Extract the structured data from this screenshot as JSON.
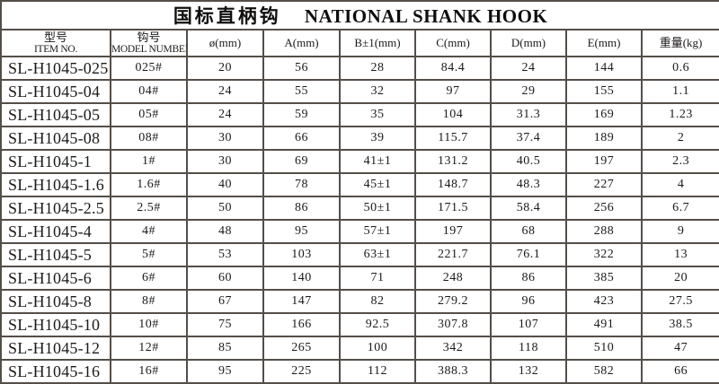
{
  "table": {
    "title": {
      "zh": "国标直柄钩",
      "en": "NATIONAL SHANK HOOK"
    },
    "columns": [
      {
        "line1": "型号",
        "line2": "ITEM NO."
      },
      {
        "line1": "钩号",
        "line2": "MODEL NUMBER"
      },
      {
        "line1": "ø(mm)"
      },
      {
        "line1": "A(mm)"
      },
      {
        "line1": "B±1(mm)"
      },
      {
        "line1": "C(mm)"
      },
      {
        "line1": "D(mm)"
      },
      {
        "line1": "E(mm)"
      },
      {
        "line1": "重量(kg)"
      }
    ],
    "rows": [
      [
        "SL-H1045-025",
        "025#",
        "20",
        "56",
        "28",
        "84.4",
        "24",
        "144",
        "0.6"
      ],
      [
        "SL-H1045-04",
        "04#",
        "24",
        "55",
        "32",
        "97",
        "29",
        "155",
        "1.1"
      ],
      [
        "SL-H1045-05",
        "05#",
        "24",
        "59",
        "35",
        "104",
        "31.3",
        "169",
        "1.23"
      ],
      [
        "SL-H1045-08",
        "08#",
        "30",
        "66",
        "39",
        "115.7",
        "37.4",
        "189",
        "2"
      ],
      [
        "SL-H1045-1",
        "1#",
        "30",
        "69",
        "41±1",
        "131.2",
        "40.5",
        "197",
        "2.3"
      ],
      [
        "SL-H1045-1.6",
        "1.6#",
        "40",
        "78",
        "45±1",
        "148.7",
        "48.3",
        "227",
        "4"
      ],
      [
        "SL-H1045-2.5",
        "2.5#",
        "50",
        "86",
        "50±1",
        "171.5",
        "58.4",
        "256",
        "6.7"
      ],
      [
        "SL-H1045-4",
        "4#",
        "48",
        "95",
        "57±1",
        "197",
        "68",
        "288",
        "9"
      ],
      [
        "SL-H1045-5",
        "5#",
        "53",
        "103",
        "63±1",
        "221.7",
        "76.1",
        "322",
        "13"
      ],
      [
        "SL-H1045-6",
        "6#",
        "60",
        "140",
        "71",
        "248",
        "86",
        "385",
        "20"
      ],
      [
        "SL-H1045-8",
        "8#",
        "67",
        "147",
        "82",
        "279.2",
        "96",
        "423",
        "27.5"
      ],
      [
        "SL-H1045-10",
        "10#",
        "75",
        "166",
        "92.5",
        "307.8",
        "107",
        "491",
        "38.5"
      ],
      [
        "SL-H1045-12",
        "12#",
        "85",
        "265",
        "100",
        "342",
        "118",
        "510",
        "47"
      ],
      [
        "SL-H1045-16",
        "16#",
        "95",
        "225",
        "112",
        "388.3",
        "132",
        "582",
        "66"
      ]
    ]
  },
  "chart_data": {
    "type": "table",
    "title": "国标直柄钩 NATIONAL SHANK HOOK",
    "columns": [
      "型号 ITEM NO.",
      "钩号 MODEL NUMBER",
      "ø(mm)",
      "A(mm)",
      "B±1(mm)",
      "C(mm)",
      "D(mm)",
      "E(mm)",
      "重量(kg)"
    ],
    "rows": [
      [
        "SL-H1045-025",
        "025#",
        "20",
        "56",
        "28",
        "84.4",
        "24",
        "144",
        "0.6"
      ],
      [
        "SL-H1045-04",
        "04#",
        "24",
        "55",
        "32",
        "97",
        "29",
        "155",
        "1.1"
      ],
      [
        "SL-H1045-05",
        "05#",
        "24",
        "59",
        "35",
        "104",
        "31.3",
        "169",
        "1.23"
      ],
      [
        "SL-H1045-08",
        "08#",
        "30",
        "66",
        "39",
        "115.7",
        "37.4",
        "189",
        "2"
      ],
      [
        "SL-H1045-1",
        "1#",
        "30",
        "69",
        "41±1",
        "131.2",
        "40.5",
        "197",
        "2.3"
      ],
      [
        "SL-H1045-1.6",
        "1.6#",
        "40",
        "78",
        "45±1",
        "148.7",
        "48.3",
        "227",
        "4"
      ],
      [
        "SL-H1045-2.5",
        "2.5#",
        "50",
        "86",
        "50±1",
        "171.5",
        "58.4",
        "256",
        "6.7"
      ],
      [
        "SL-H1045-4",
        "4#",
        "48",
        "95",
        "57±1",
        "197",
        "68",
        "288",
        "9"
      ],
      [
        "SL-H1045-5",
        "5#",
        "53",
        "103",
        "63±1",
        "221.7",
        "76.1",
        "322",
        "13"
      ],
      [
        "SL-H1045-6",
        "6#",
        "60",
        "140",
        "71",
        "248",
        "86",
        "385",
        "20"
      ],
      [
        "SL-H1045-8",
        "8#",
        "67",
        "147",
        "82",
        "279.2",
        "96",
        "423",
        "27.5"
      ],
      [
        "SL-H1045-10",
        "10#",
        "75",
        "166",
        "92.5",
        "307.8",
        "107",
        "491",
        "38.5"
      ],
      [
        "SL-H1045-12",
        "12#",
        "85",
        "265",
        "100",
        "342",
        "118",
        "510",
        "47"
      ],
      [
        "SL-H1045-16",
        "16#",
        "95",
        "225",
        "112",
        "388.3",
        "132",
        "582",
        "66"
      ]
    ]
  }
}
